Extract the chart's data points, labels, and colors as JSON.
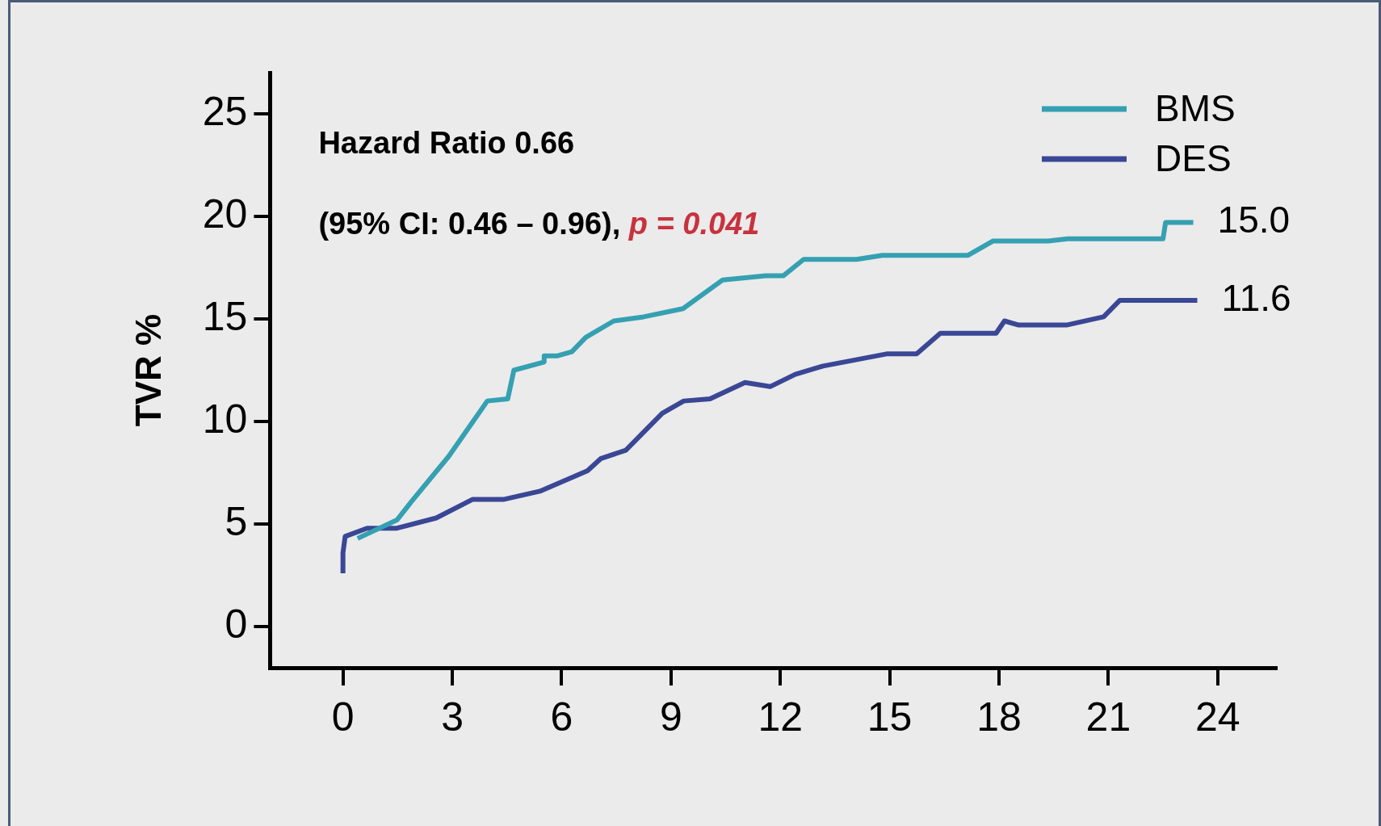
{
  "chart_data": {
    "type": "line",
    "ylabel": "TVR %",
    "legend": "top right",
    "grid": false,
    "marker": "none",
    "line_style": "solid",
    "xlim": [
      -2,
      25.6
    ],
    "xticks": [
      0,
      3,
      6,
      9,
      12,
      15,
      18,
      21,
      24
    ],
    "ylim": [
      -2,
      27
    ],
    "yticks": [
      0,
      5,
      10,
      15,
      20,
      25
    ],
    "series": [
      {
        "name": "BMS",
        "color": "#35a0b2",
        "x": [
          0.4,
          1.48,
          1.88,
          2.9,
          3.53,
          3.96,
          4.52,
          4.69,
          5.52,
          5.52,
          5.89,
          6.28,
          6.66,
          7.43,
          8.25,
          9.33,
          10.42,
          11.6,
          12.08,
          12.64,
          14.09,
          14.8,
          17.15,
          17.84,
          19.35,
          19.88,
          22.5,
          22.57,
          23.33
        ],
        "values": [
          4.3,
          5.2,
          6.1,
          8.3,
          9.9,
          11.0,
          11.1,
          12.5,
          12.9,
          13.2,
          13.2,
          13.4,
          14.1,
          14.9,
          15.1,
          15.5,
          16.9,
          17.1,
          17.1,
          17.9,
          17.9,
          18.1,
          18.1,
          18.8,
          18.8,
          18.9,
          18.9,
          19.7,
          19.7
        ]
      },
      {
        "name": "DES",
        "color": "#3a4795",
        "x": [
          0,
          0,
          0.06,
          0.66,
          1.48,
          2.56,
          3.55,
          4.4,
          5.4,
          6.71,
          7.08,
          7.76,
          8.76,
          9.35,
          10.07,
          11.03,
          11.72,
          12.41,
          13.17,
          14.94,
          15.74,
          16.39,
          17.92,
          18.15,
          18.54,
          19.85,
          20.87,
          21.31,
          23.44
        ],
        "values": [
          2.6,
          3.6,
          4.4,
          4.8,
          4.8,
          5.3,
          6.2,
          6.2,
          6.6,
          7.6,
          8.2,
          8.6,
          10.4,
          11.0,
          11.1,
          11.9,
          11.7,
          12.3,
          12.7,
          13.3,
          13.3,
          14.3,
          14.3,
          14.9,
          14.7,
          14.7,
          15.1,
          15.9,
          15.9
        ]
      }
    ],
    "annotations": [
      "Hazard Ratio 0.66",
      "(95% CI: 0.46 – 0.96), ",
      "p = 0.041",
      {
        "text": "15.0",
        "x": 23.33,
        "y": 19.7
      },
      {
        "text": "11.6",
        "x": 23.44,
        "y": 15.9
      }
    ]
  }
}
